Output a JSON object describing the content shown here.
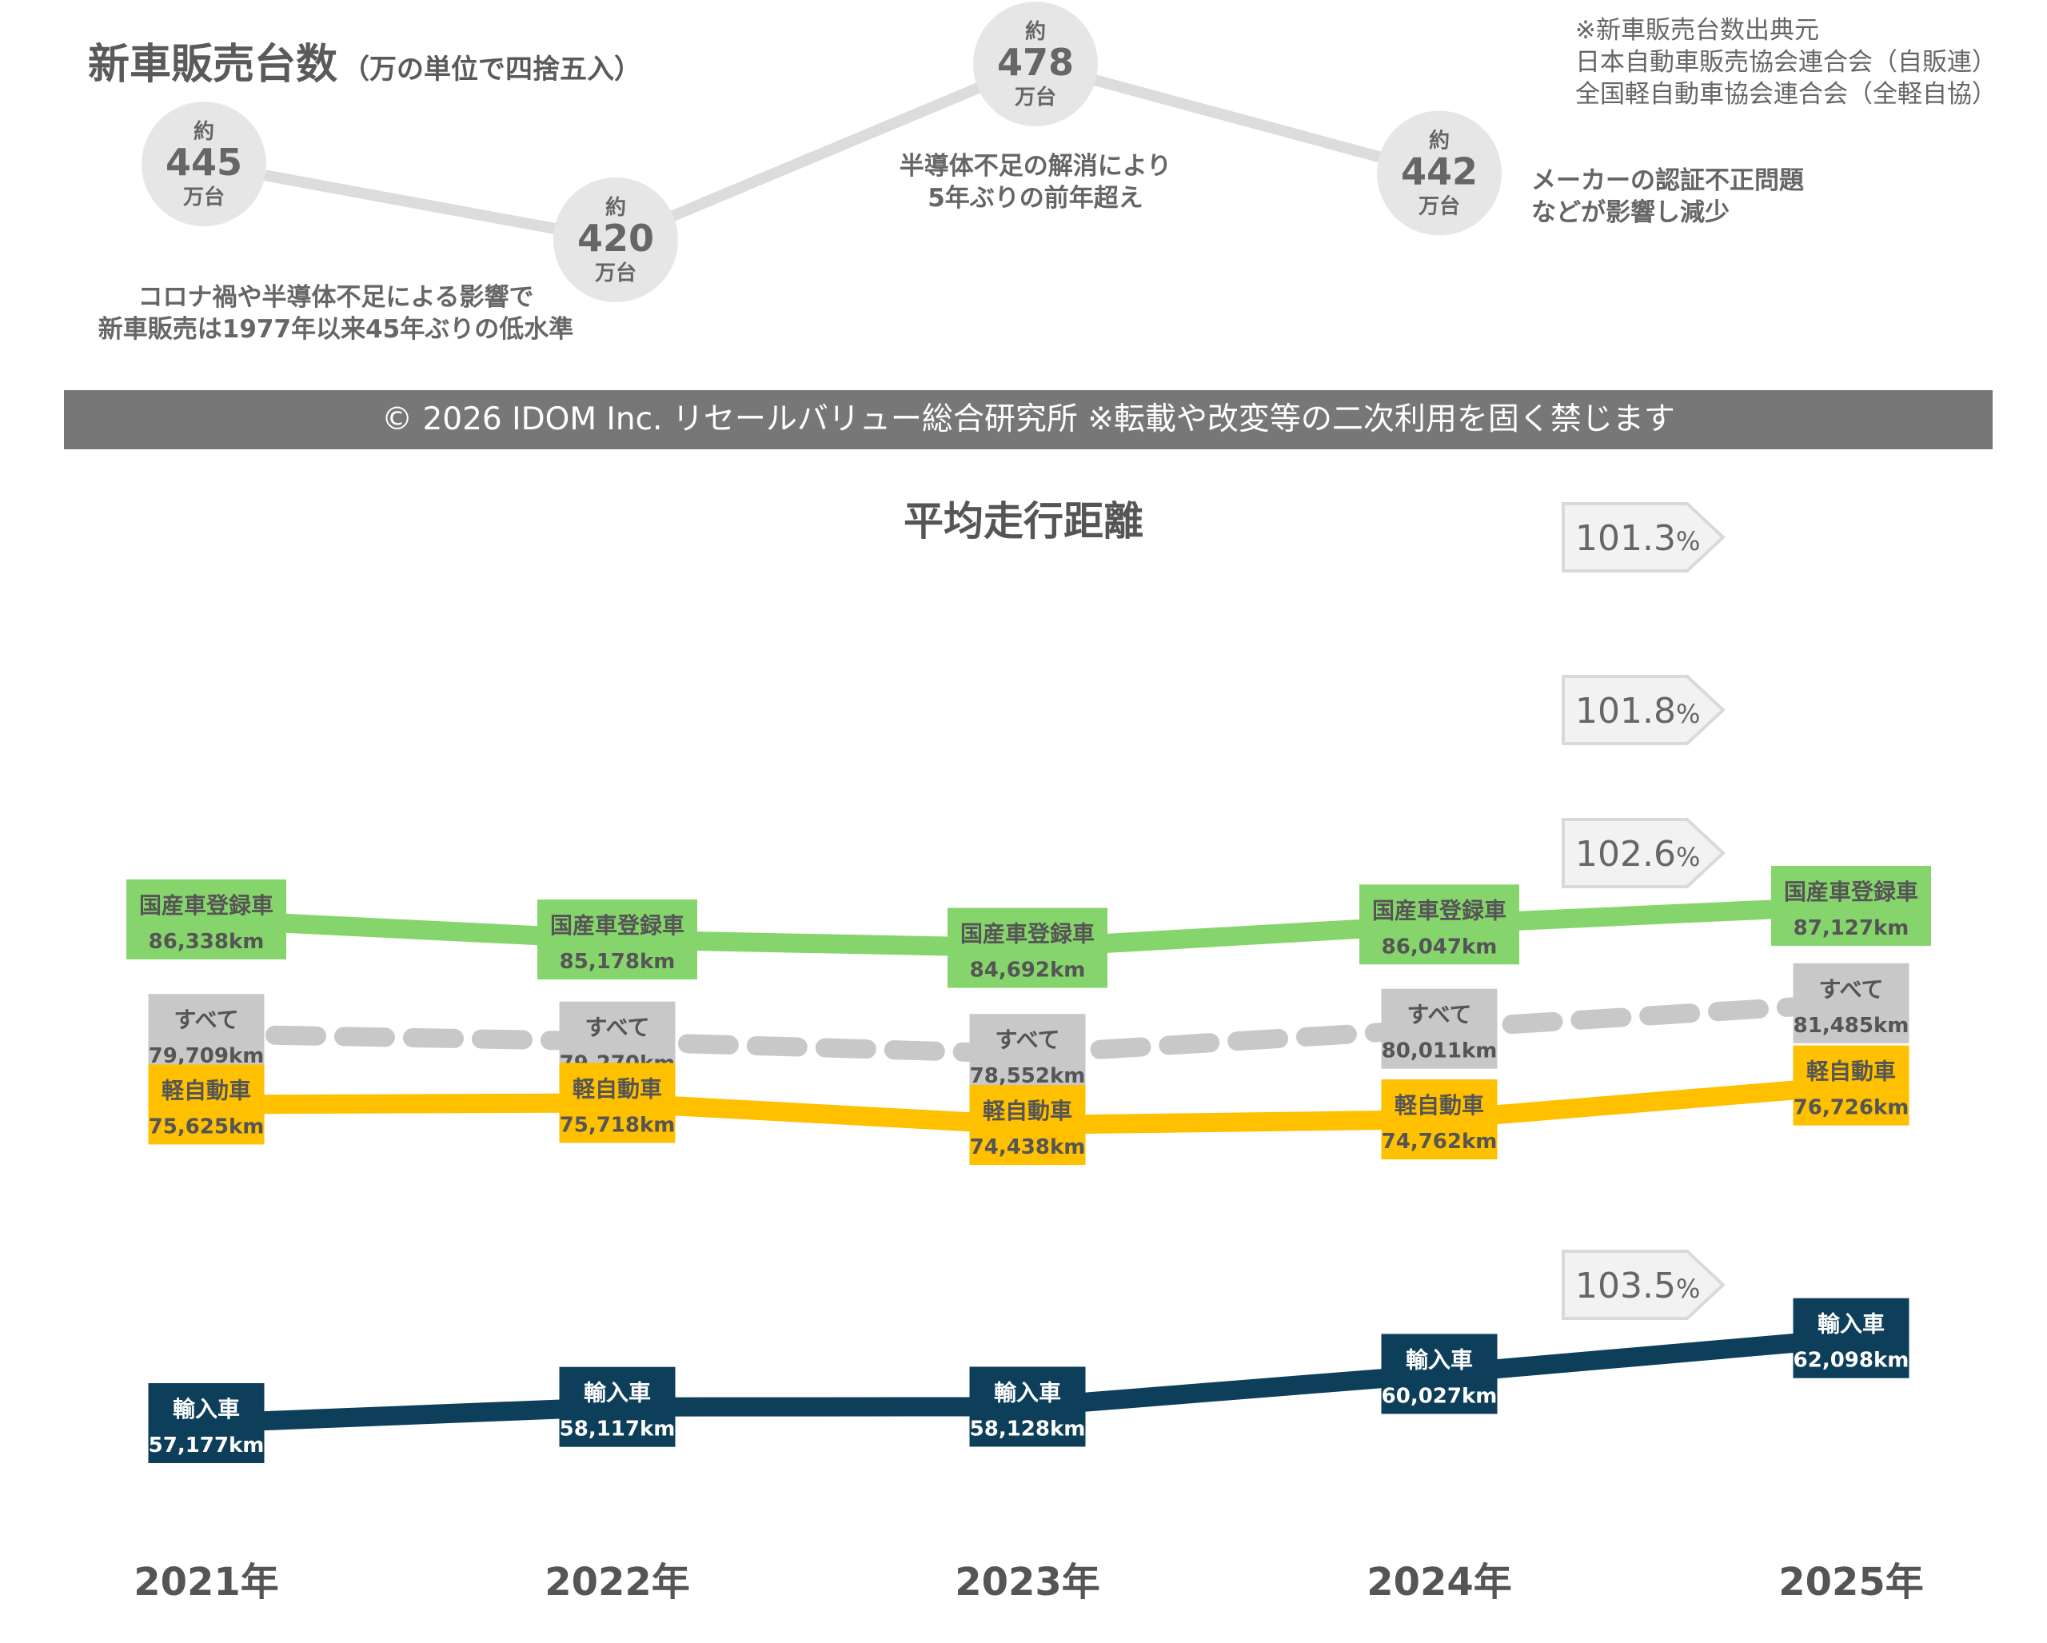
{
  "sales": {
    "title": "新車販売台数",
    "title_note": "（万の単位で四捨五入）",
    "approx_label": "約",
    "unit_label": "万台",
    "source_lines": [
      "※新車販売台数出典元",
      "日本自動車販売協会連合会（自販連）",
      "全国軽自動車協会連合会（全軽自協）"
    ],
    "points": [
      {
        "value": "445",
        "note": []
      },
      {
        "value": "420",
        "note": [
          "コロナ禍や半導体不足による影響で",
          "新車販売は1977年以来45年ぶりの低水準"
        ]
      },
      {
        "value": "478",
        "note": [
          "半導体不足の解消により",
          "5年ぶりの前年超え"
        ]
      },
      {
        "value": "442",
        "note": [
          "メーカーの認証不正問題",
          "などが影響し減少"
        ]
      }
    ]
  },
  "banner": {
    "text": "© 2026 IDOM Inc.  リセールバリュー総合研究所 ※転載や改変等の二次利用を固く禁じます"
  },
  "chart_data": {
    "type": "line",
    "title": "平均走行距離",
    "categories": [
      "2021年",
      "2022年",
      "2023年",
      "2024年",
      "2025年"
    ],
    "series": [
      {
        "name": "国産車登録車",
        "values": [
          86338,
          85178,
          84692,
          86047,
          87127
        ],
        "labels": [
          "86,338km",
          "85,178km",
          "84,692km",
          "86,047km",
          "87,127km"
        ],
        "color": "#86d56c",
        "dashed": false,
        "growth": {
          "num": "101.3",
          "pct": "%"
        }
      },
      {
        "name": "すべて",
        "values": [
          79709,
          79270,
          78552,
          80011,
          81485
        ],
        "labels": [
          "79,709km",
          "79,270km",
          "78,552km",
          "80,011km",
          "81,485km"
        ],
        "color": "#c8c8c8",
        "dashed": true,
        "growth": {
          "num": "101.8",
          "pct": "%"
        }
      },
      {
        "name": "軽自動車",
        "values": [
          75625,
          75718,
          74438,
          74762,
          76726
        ],
        "labels": [
          "75,625km",
          "75,718km",
          "74,438km",
          "74,762km",
          "76,726km"
        ],
        "color": "#ffc000",
        "dashed": false,
        "growth": {
          "num": "102.6",
          "pct": "%"
        }
      },
      {
        "name": "輸入車",
        "values": [
          57177,
          58117,
          58128,
          60027,
          62098
        ],
        "labels": [
          "57,177km",
          "58,117km",
          "58,128km",
          "60,027km",
          "62,098km"
        ],
        "color": "#0d3e5a",
        "dashed": false,
        "growth": {
          "num": "103.5",
          "pct": "%"
        }
      }
    ],
    "grid": false,
    "legend": "none"
  }
}
